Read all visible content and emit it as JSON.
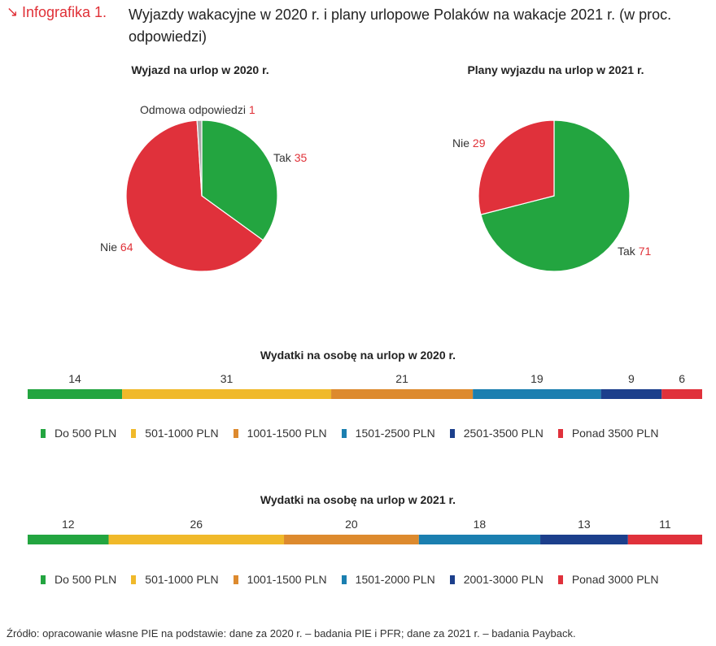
{
  "header": {
    "arrow": "↘",
    "tag": "Infografika 1.",
    "title": "Wyjazdy wakacyjne w 2020 r. i plany urlopowe Polaków na wakacje 2021 r. (w proc. odpowiedzi)"
  },
  "colors": {
    "green": "#23a540",
    "red": "#e0313b",
    "gray": "#a7a7a7",
    "yellow": "#f0b92a",
    "orange": "#dd8a2e",
    "teal": "#1b7fb0",
    "navy": "#1c3f8c",
    "accent": "#e03037"
  },
  "chart_data": [
    {
      "type": "pie",
      "title": "Wyjazd na urlop w 2020 r.",
      "slices": [
        {
          "label": "Tak",
          "value": 35,
          "color": "#23a540"
        },
        {
          "label": "Nie",
          "value": 64,
          "color": "#e0313b"
        },
        {
          "label": "Odmowa odpowiedzi",
          "value": 1,
          "color": "#a7a7a7"
        }
      ]
    },
    {
      "type": "pie",
      "title": "Plany wyjazdu na urlop w 2021 r.",
      "slices": [
        {
          "label": "Tak",
          "value": 71,
          "color": "#23a540"
        },
        {
          "label": "Nie",
          "value": 29,
          "color": "#e0313b"
        }
      ]
    },
    {
      "type": "bar",
      "orientation": "stacked-horizontal",
      "title": "Wydatki na osobę na urlop w 2020 r.",
      "categories": [
        "Do 500 PLN",
        "501-1000 PLN",
        "1001-1500 PLN",
        "1501-2500 PLN",
        "2501-3500 PLN",
        "Ponad 3500 PLN"
      ],
      "values": [
        14,
        31,
        21,
        19,
        9,
        6
      ],
      "colors": [
        "#23a540",
        "#f0b92a",
        "#dd8a2e",
        "#1b7fb0",
        "#1c3f8c",
        "#e0313b"
      ]
    },
    {
      "type": "bar",
      "orientation": "stacked-horizontal",
      "title": "Wydatki na osobę na urlop w 2021 r.",
      "categories": [
        "Do 500 PLN",
        "501-1000 PLN",
        "1001-1500 PLN",
        "1501-2000 PLN",
        "2001-3000 PLN",
        "Ponad 3000 PLN"
      ],
      "values": [
        12,
        26,
        20,
        18,
        13,
        11
      ],
      "colors": [
        "#23a540",
        "#f0b92a",
        "#dd8a2e",
        "#1b7fb0",
        "#1c3f8c",
        "#e0313b"
      ]
    }
  ],
  "source": "Źródło: opracowanie własne PIE na podstawie: dane za 2020 r. – badania PIE i PFR; dane za 2021 r. – badania Payback."
}
